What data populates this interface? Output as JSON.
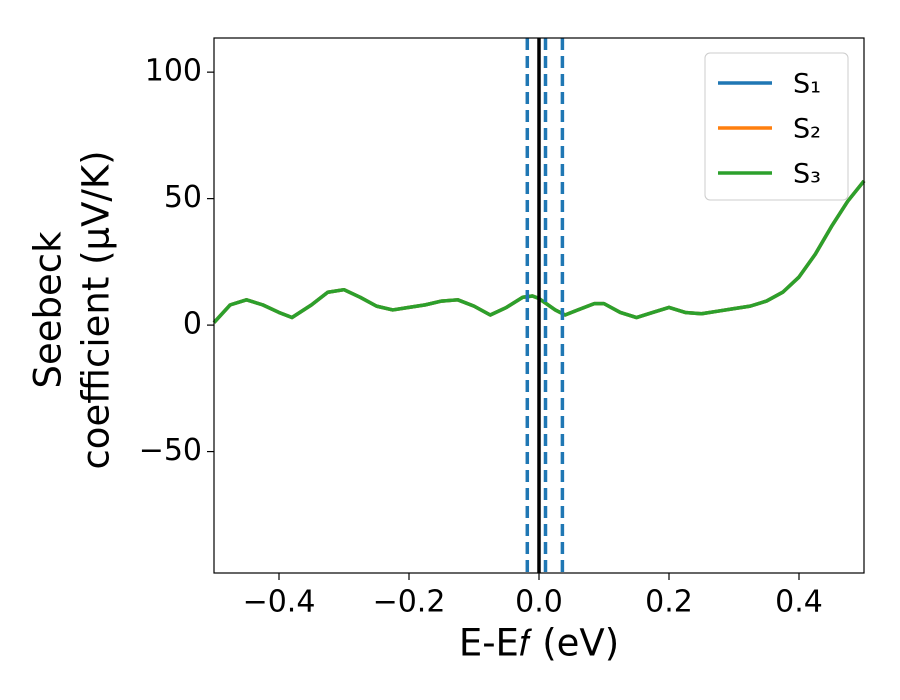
{
  "chart_data": {
    "type": "line",
    "xlabel": "E-E𝑓 (eV)",
    "ylabel": [
      "Seebeck",
      "coefficient  (μV/K)"
    ],
    "x": [
      -0.5,
      -0.475,
      -0.45,
      -0.425,
      -0.4,
      -0.38,
      -0.35,
      -0.325,
      -0.3,
      -0.275,
      -0.25,
      -0.225,
      -0.2,
      -0.175,
      -0.15,
      -0.125,
      -0.1,
      -0.075,
      -0.05,
      -0.025,
      -0.01,
      0.0,
      0.025,
      0.04,
      0.06,
      0.085,
      0.1,
      0.125,
      0.15,
      0.175,
      0.2,
      0.225,
      0.25,
      0.275,
      0.3,
      0.325,
      0.35,
      0.375,
      0.4,
      0.425,
      0.45,
      0.475,
      0.5
    ],
    "series": [
      {
        "name": "S₁",
        "color": "#1f77b4",
        "values": [
          1,
          8,
          10,
          8,
          5,
          3,
          8,
          13,
          14,
          11,
          7.5,
          6,
          7,
          8,
          9.5,
          10,
          7.5,
          4,
          7,
          11,
          11.5,
          10.5,
          6,
          4,
          6,
          8.5,
          8.5,
          5,
          3,
          5,
          7,
          5,
          4.5,
          5.5,
          6.5,
          7.5,
          9.5,
          13,
          19,
          28,
          39,
          49,
          57
        ]
      },
      {
        "name": "S₂",
        "color": "#ff7f0e",
        "values": [
          1,
          8,
          10,
          8,
          5,
          3,
          8,
          13,
          14,
          11,
          7.5,
          6,
          7,
          8,
          9.5,
          10,
          7.5,
          4,
          7,
          11,
          11.5,
          10.5,
          6,
          4,
          6,
          8.5,
          8.5,
          5,
          3,
          5,
          7,
          5,
          4.5,
          5.5,
          6.5,
          7.5,
          9.5,
          13,
          19,
          28,
          39,
          49,
          57
        ]
      },
      {
        "name": "S₃",
        "color": "#2ca02c",
        "values": [
          1,
          8,
          10,
          8,
          5,
          3,
          8,
          13,
          14,
          11,
          7.5,
          6,
          7,
          8,
          9.5,
          10,
          7.5,
          4,
          7,
          11,
          11.5,
          10.5,
          6,
          4,
          6,
          8.5,
          8.5,
          5,
          3,
          5,
          7,
          5,
          4.5,
          5.5,
          6.5,
          7.5,
          9.5,
          13,
          19,
          28,
          39,
          49,
          57
        ]
      }
    ],
    "vlines": [
      {
        "x": -0.018,
        "color": "#1f77b4",
        "style": "dashed"
      },
      {
        "x": 0,
        "color": "#000000",
        "style": "solid"
      },
      {
        "x": 0.01,
        "color": "#1f77b4",
        "style": "dashed"
      },
      {
        "x": 0.036,
        "color": "#1f77b4",
        "style": "dashed"
      }
    ],
    "xlim": [
      -0.5,
      0.5
    ],
    "ylim": [
      -98,
      113.5
    ],
    "xticks": [
      {
        "value": -0.4,
        "label": "−0.4"
      },
      {
        "value": -0.2,
        "label": "−0.2"
      },
      {
        "value": 0,
        "label": "0.0"
      },
      0.2,
      0.4
    ],
    "yticks": [
      {
        "value": -50,
        "label": "−50"
      },
      0,
      50,
      100
    ],
    "legend": "upper right",
    "grid": false
  }
}
